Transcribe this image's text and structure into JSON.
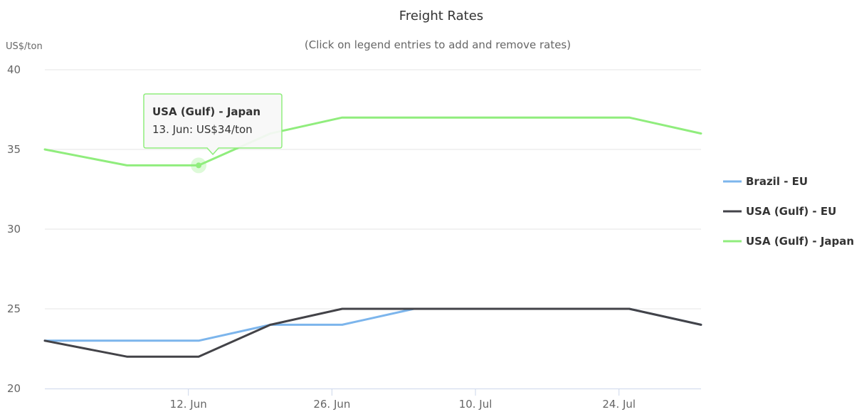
{
  "chart_data": {
    "type": "line",
    "title": "Freight Rates",
    "subtitle": "(Click on legend entries to add and remove rates)",
    "ylabel": "US$/ton",
    "xlabel": "",
    "ylim": [
      20,
      40
    ],
    "y_ticks": [
      "20",
      "25",
      "30",
      "35",
      "40"
    ],
    "y_tick_values": [
      20,
      25,
      30,
      35,
      40
    ],
    "x": [
      "2019-05-29",
      "2019-06-06",
      "2019-06-13",
      "2019-06-20",
      "2019-06-27",
      "2019-07-04",
      "2019-07-11",
      "2019-07-18",
      "2019-07-25",
      "2019-08-01"
    ],
    "x_range": [
      "2019-05-29",
      "2019-08-01"
    ],
    "x_ticks": [
      {
        "date": "2019-06-12",
        "label": "12. Jun"
      },
      {
        "date": "2019-06-26",
        "label": "26. Jun"
      },
      {
        "date": "2019-07-10",
        "label": "10. Jul"
      },
      {
        "date": "2019-07-24",
        "label": "24. Jul"
      }
    ],
    "grid": true,
    "legend_position": "right",
    "series": [
      {
        "name": "Brazil - EU",
        "color": "#7cb5ec",
        "values": [
          23,
          23,
          23,
          24,
          24,
          25,
          25,
          25,
          25,
          24
        ]
      },
      {
        "name": "USA (Gulf) - EU",
        "color": "#434348",
        "values": [
          23,
          22,
          22,
          24,
          25,
          25,
          25,
          25,
          25,
          24
        ]
      },
      {
        "name": "USA (Gulf) - Japan",
        "color": "#90ed7d",
        "values": [
          35,
          34,
          34,
          36,
          37,
          37,
          37,
          37,
          37,
          36
        ]
      }
    ],
    "tooltip": {
      "series_index": 2,
      "point_index": 2,
      "title": "USA (Gulf) - Japan",
      "text": "13. Jun: US$34/ton"
    }
  }
}
